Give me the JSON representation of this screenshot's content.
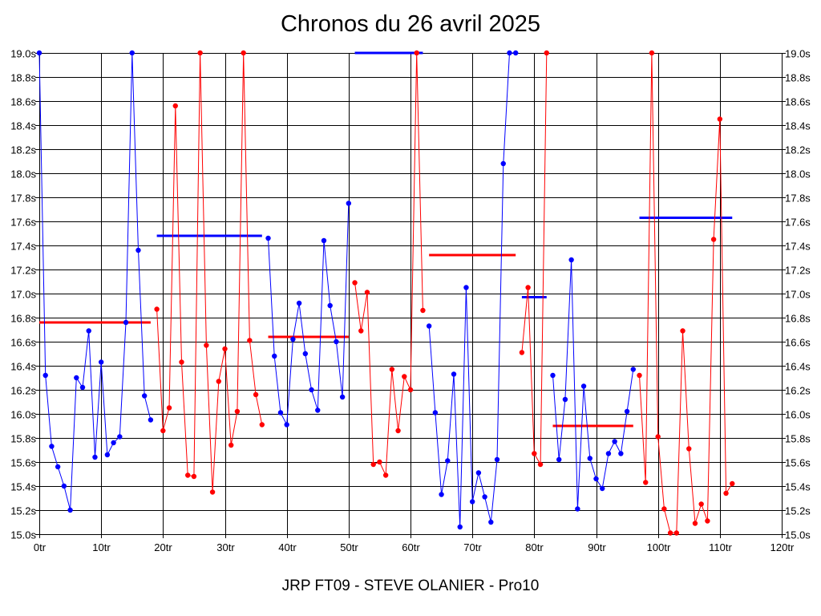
{
  "chart_data": {
    "type": "line",
    "title": "Chronos du 26 avril 2025",
    "subtitle": "JRP FT09 - STEVE OLANIER - Pro10",
    "xlabel": "",
    "ylabel": "",
    "xlim": [
      0,
      120
    ],
    "ylim": [
      15.0,
      19.0
    ],
    "x_ticks": [
      "0tr",
      "10tr",
      "20tr",
      "30tr",
      "40tr",
      "50tr",
      "60tr",
      "70tr",
      "80tr",
      "90tr",
      "100tr",
      "110tr",
      "120tr"
    ],
    "y_ticks": [
      "15.0s",
      "15.2s",
      "15.4s",
      "15.6s",
      "15.8s",
      "16.0s",
      "16.2s",
      "16.4s",
      "16.6s",
      "16.8s",
      "17.0s",
      "17.2s",
      "17.4s",
      "17.6s",
      "17.8s",
      "18.0s",
      "18.2s",
      "18.4s",
      "18.6s",
      "18.8s",
      "19.0s"
    ],
    "grid": true,
    "colors": {
      "blue": "#0000ff",
      "red": "#ff0000",
      "grid": "#000000"
    },
    "series": [
      {
        "color": "#0000ff",
        "points": [
          [
            0,
            19.0
          ],
          [
            1,
            16.32
          ],
          [
            2,
            15.73
          ],
          [
            3,
            15.56
          ],
          [
            4,
            15.4
          ],
          [
            5,
            15.2
          ],
          [
            6,
            16.3
          ],
          [
            7,
            16.22
          ],
          [
            8,
            16.69
          ],
          [
            9,
            15.64
          ],
          [
            10,
            16.43
          ],
          [
            11,
            15.66
          ],
          [
            12,
            15.76
          ],
          [
            13,
            15.81
          ],
          [
            14,
            16.76
          ],
          [
            15,
            19.0
          ],
          [
            16,
            17.36
          ],
          [
            17,
            16.15
          ],
          [
            18,
            15.95
          ]
        ]
      },
      {
        "color": "#ff0000",
        "points": [
          [
            19,
            16.87
          ],
          [
            20,
            15.86
          ],
          [
            21,
            16.05
          ],
          [
            22,
            18.56
          ],
          [
            23,
            16.43
          ],
          [
            24,
            15.49
          ],
          [
            25,
            15.48
          ],
          [
            26,
            19.0
          ],
          [
            27,
            16.57
          ],
          [
            28,
            15.35
          ],
          [
            29,
            16.27
          ],
          [
            30,
            16.54
          ],
          [
            31,
            15.74
          ],
          [
            32,
            16.02
          ],
          [
            33,
            19.0
          ],
          [
            34,
            16.61
          ],
          [
            35,
            16.16
          ],
          [
            36,
            15.91
          ]
        ]
      },
      {
        "color": "#0000ff",
        "points": [
          [
            37,
            17.46
          ],
          [
            38,
            16.48
          ],
          [
            39,
            16.01
          ],
          [
            40,
            15.91
          ],
          [
            41,
            16.62
          ],
          [
            42,
            16.92
          ],
          [
            43,
            16.5
          ],
          [
            44,
            16.2
          ],
          [
            45,
            16.03
          ],
          [
            46,
            17.44
          ],
          [
            47,
            16.9
          ],
          [
            48,
            16.6
          ],
          [
            49,
            16.14
          ],
          [
            50,
            17.75
          ]
        ]
      },
      {
        "color": "#ff0000",
        "points": [
          [
            51,
            17.09
          ],
          [
            52,
            16.69
          ],
          [
            53,
            17.01
          ],
          [
            54,
            15.58
          ],
          [
            55,
            15.6
          ],
          [
            56,
            15.49
          ],
          [
            57,
            16.37
          ],
          [
            58,
            15.86
          ],
          [
            59,
            16.31
          ],
          [
            60,
            16.2
          ],
          [
            61,
            19.0
          ],
          [
            62,
            16.86
          ]
        ]
      },
      {
        "color": "#0000ff",
        "points": [
          [
            63,
            16.73
          ],
          [
            64,
            16.01
          ],
          [
            65,
            15.33
          ],
          [
            66,
            15.61
          ],
          [
            67,
            16.33
          ],
          [
            68,
            15.06
          ],
          [
            69,
            17.05
          ],
          [
            70,
            15.27
          ],
          [
            71,
            15.51
          ],
          [
            72,
            15.31
          ],
          [
            73,
            15.1
          ],
          [
            74,
            15.62
          ],
          [
            75,
            18.08
          ],
          [
            76,
            19.0
          ],
          [
            77,
            19.0
          ]
        ]
      },
      {
        "color": "#ff0000",
        "points": [
          [
            78,
            16.51
          ],
          [
            79,
            17.05
          ],
          [
            80,
            15.67
          ],
          [
            81,
            15.58
          ],
          [
            82,
            19.0
          ]
        ]
      },
      {
        "color": "#0000ff",
        "points": [
          [
            83,
            16.32
          ],
          [
            84,
            15.62
          ],
          [
            85,
            16.12
          ],
          [
            86,
            17.28
          ],
          [
            87,
            15.21
          ],
          [
            88,
            16.23
          ],
          [
            89,
            15.63
          ],
          [
            90,
            15.46
          ],
          [
            91,
            15.38
          ],
          [
            92,
            15.67
          ],
          [
            93,
            15.77
          ],
          [
            94,
            15.67
          ],
          [
            95,
            16.02
          ],
          [
            96,
            16.37
          ]
        ]
      },
      {
        "color": "#ff0000",
        "points": [
          [
            97,
            16.32
          ],
          [
            98,
            15.43
          ],
          [
            99,
            19.0
          ],
          [
            100,
            15.81
          ],
          [
            101,
            15.21
          ],
          [
            102,
            15.01
          ],
          [
            103,
            15.01
          ],
          [
            104,
            16.69
          ],
          [
            105,
            15.71
          ],
          [
            106,
            15.09
          ],
          [
            107,
            15.25
          ],
          [
            108,
            15.11
          ],
          [
            109,
            17.45
          ],
          [
            110,
            18.45
          ],
          [
            111,
            15.34
          ],
          [
            112,
            15.42
          ]
        ]
      }
    ],
    "reference_lines": [
      {
        "color": "#ff0000",
        "x": [
          0,
          18
        ],
        "y": 16.76
      },
      {
        "color": "#0000ff",
        "x": [
          19,
          36
        ],
        "y": 17.48
      },
      {
        "color": "#ff0000",
        "x": [
          37,
          50
        ],
        "y": 16.64
      },
      {
        "color": "#0000ff",
        "x": [
          51,
          62
        ],
        "y": 19.0
      },
      {
        "color": "#ff0000",
        "x": [
          63,
          77
        ],
        "y": 17.32
      },
      {
        "color": "#0000ff",
        "x": [
          78,
          82
        ],
        "y": 16.97
      },
      {
        "color": "#ff0000",
        "x": [
          83,
          96
        ],
        "y": 15.9
      },
      {
        "color": "#0000ff",
        "x": [
          97,
          112
        ],
        "y": 17.63
      }
    ]
  }
}
